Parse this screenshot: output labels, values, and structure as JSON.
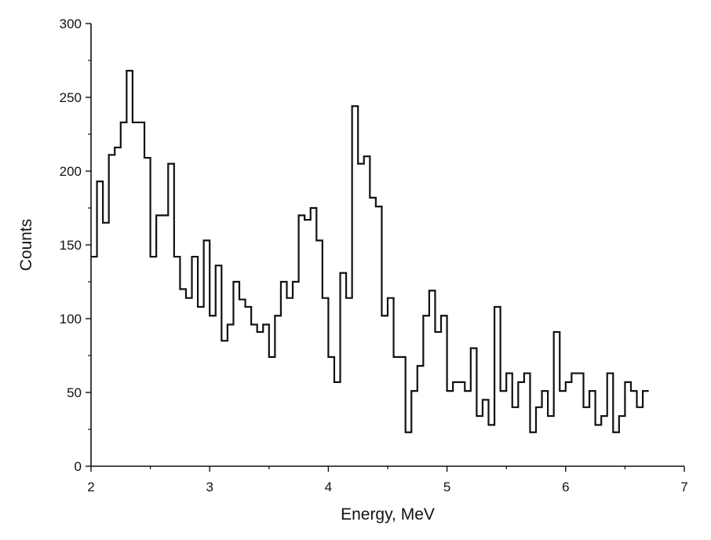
{
  "chart_data": {
    "type": "histogram-step",
    "xlabel": "Energy, MeV",
    "ylabel": "Counts",
    "xlim": [
      2,
      7
    ],
    "ylim": [
      0,
      300
    ],
    "x_ticks": [
      "2",
      "3",
      "4",
      "5",
      "6",
      "7"
    ],
    "y_ticks": [
      "0",
      "50",
      "100",
      "150",
      "200",
      "250",
      "300"
    ],
    "bin_width": 0.05,
    "series": [
      {
        "x_start": 2.0,
        "values": [
          142,
          193,
          165,
          211,
          216,
          233,
          268,
          233,
          233,
          209,
          142,
          170,
          170,
          205,
          142,
          120,
          114,
          142,
          108,
          153,
          102,
          136,
          85,
          96,
          125,
          113,
          108,
          96,
          91,
          96,
          74,
          102,
          125,
          114,
          125,
          170,
          167,
          175,
          153,
          114,
          74,
          57,
          131,
          114,
          244,
          205,
          210,
          182,
          176,
          102,
          114,
          74,
          74,
          23,
          51,
          68,
          102,
          119,
          91,
          102,
          51,
          57,
          57,
          51,
          80,
          34,
          45,
          28,
          108,
          51,
          63,
          40,
          57,
          63,
          23,
          40,
          51,
          34,
          91,
          51,
          57,
          63,
          63,
          40,
          51,
          28,
          34,
          63,
          23,
          34,
          57,
          51,
          40,
          51
        ]
      }
    ],
    "grid": false,
    "legend": "none",
    "line_color": "#111111"
  }
}
